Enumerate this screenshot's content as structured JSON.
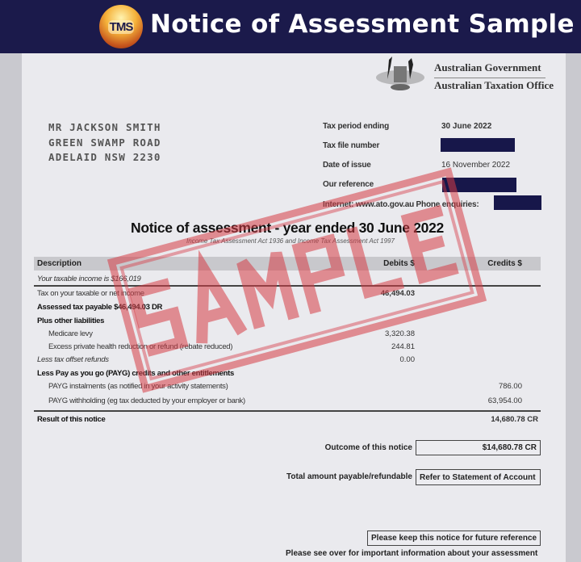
{
  "banner": {
    "logo_text": "TMS",
    "title": "Notice of Assessment Sample"
  },
  "agency": {
    "line1": "Australian Government",
    "line2": "Australian Taxation Office"
  },
  "address": [
    "MR JACKSON SMITH",
    "GREEN SWAMP ROAD",
    "ADELAID NSW 2230"
  ],
  "info": {
    "tax_period_label": "Tax period ending",
    "tax_period_value": "30 June 2022",
    "tfn_label": "Tax file number",
    "issue_label": "Date of issue",
    "issue_value": "16 November 2022",
    "ref_label": "Our reference",
    "contact_label": "Internet: www.ato.gov.au  Phone enquiries:"
  },
  "notice": {
    "title": "Notice of assessment - year ended 30 June 2022",
    "subtitle": "Income Tax Assessment Act 1936 and Income Tax Assessment Act 1997"
  },
  "table": {
    "headers": {
      "description": "Description",
      "debits": "Debits $",
      "credits": "Credits $"
    },
    "rows": [
      {
        "desc": "Your taxable income is $166,019"
      },
      {
        "desc": "Tax on your taxable or net income",
        "debit": "46,494.03"
      },
      {
        "desc": "Assessed tax payable $46,494.03 DR"
      },
      {
        "desc": "Plus other liabilities"
      },
      {
        "desc": "Medicare levy",
        "debit": "3,320.38"
      },
      {
        "desc": "Excess private health reduction or refund (rebate reduced)",
        "debit": "244.81"
      },
      {
        "desc": "Less tax offset refunds",
        "debit": "0.00"
      },
      {
        "desc": "Less Pay as you go (PAYG) credits and other entitlements"
      },
      {
        "desc": "PAYG instalments (as notified in your activity statements)",
        "credit": "786.00"
      },
      {
        "desc": "PAYG withholding (eg tax deducted by your employer or bank)",
        "credit": "63,954.00"
      },
      {
        "desc": "Result of this notice",
        "credit": "14,680.78 CR"
      }
    ]
  },
  "summary": {
    "outcome_label": "Outcome of this notice",
    "outcome_value": "$14,680.78 CR",
    "total_label": "Total amount payable/refundable",
    "total_value": "Refer to Statement of Account"
  },
  "footer": {
    "keep": "Please keep this notice for future reference",
    "see_over": "Please see over for important information about your assessment"
  },
  "stamp": "SAMPLE",
  "colors": {
    "banner": "#1b1a4b",
    "redaction": "#17174a",
    "stamp": "#d63c46"
  }
}
